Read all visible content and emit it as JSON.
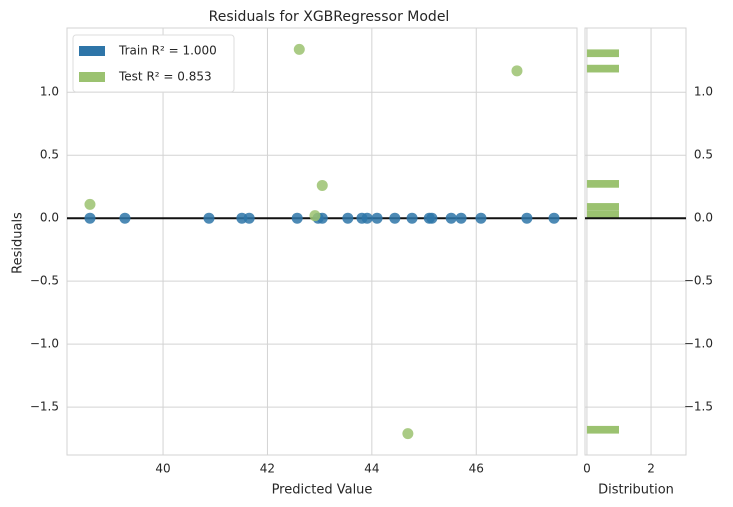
{
  "chart_data": [
    {
      "type": "scatter",
      "title": "Residuals for XGBRegressor Model",
      "x_label": "Predicted Value",
      "y_label": "Residuals",
      "xlim": [
        38.16,
        47.93
      ],
      "ylim": [
        -1.88,
        1.51
      ],
      "xticks": [
        40,
        42,
        44,
        46
      ],
      "yticks": [
        {
          "value": -1.5,
          "label": "−1.5"
        },
        {
          "value": -1.0,
          "label": "−1.0"
        },
        {
          "value": -0.5,
          "label": "−0.5"
        },
        {
          "value": 0,
          "label": "0.0"
        },
        {
          "value": 0.5,
          "label": "0.5"
        },
        {
          "value": 1.0,
          "label": "1.0"
        }
      ],
      "grid": true,
      "hline": 0,
      "legend": "upper left",
      "series": [
        {
          "name": "Train R² = 1.000",
          "color": "#2e75a8",
          "x": [
            38.6,
            39.27,
            40.88,
            41.51,
            41.65,
            42.57,
            42.97,
            43.05,
            43.54,
            43.81,
            43.91,
            44.1,
            44.44,
            44.77,
            45.1,
            45.15,
            45.52,
            45.71,
            46.09,
            46.97,
            47.49
          ],
          "values": [
            0,
            0,
            0,
            0,
            0,
            0,
            0,
            0,
            0,
            0,
            0,
            0,
            0,
            0,
            0,
            0,
            0,
            0,
            0,
            0,
            0
          ]
        },
        {
          "name": "Test R² = 0.853",
          "color": "#9bc270",
          "x": [
            38.6,
            42.61,
            46.78,
            43.05,
            42.91,
            44.69
          ],
          "values": [
            0.11,
            1.34,
            1.17,
            0.26,
            0.02,
            -1.71
          ]
        }
      ]
    },
    {
      "type": "histogram",
      "x_label": "Distribution",
      "orientation": "horizontal",
      "color": "#9bc270",
      "xlim": [
        -0.06,
        3.09
      ],
      "xticks": [
        0,
        2
      ],
      "ylim": [
        -1.88,
        1.51
      ],
      "yticks": [
        {
          "value": -1.5,
          "label": "−1.5"
        },
        {
          "value": -1.0,
          "label": "−1.0"
        },
        {
          "value": -0.5,
          "label": "−0.5"
        },
        {
          "value": 0,
          "label": "0.0"
        },
        {
          "value": 0.5,
          "label": "0.5"
        },
        {
          "value": 1.0,
          "label": "1.0"
        }
      ],
      "grid": true,
      "hline": 0,
      "bins": [
        -1.71,
        -1.649,
        -1.588,
        -1.527,
        -1.466,
        -1.405,
        -1.344,
        -1.283,
        -1.222,
        -1.161,
        -1.1,
        -1.039,
        -0.978,
        -0.917,
        -0.856,
        -0.795,
        -0.734,
        -0.673,
        -0.612,
        -0.551,
        -0.49,
        -0.429,
        -0.368,
        -0.307,
        -0.246,
        -0.185,
        -0.124,
        -0.063,
        -0.002,
        0.059,
        0.12,
        0.181,
        0.242,
        0.303,
        0.364,
        0.425,
        0.486,
        0.547,
        0.608,
        0.669,
        0.73,
        0.791,
        0.852,
        0.913,
        0.974,
        1.035,
        1.096,
        1.157,
        1.218,
        1.279,
        1.34
      ],
      "values": [
        1,
        0,
        0,
        0,
        0,
        0,
        0,
        0,
        0,
        0,
        0,
        0,
        0,
        0,
        0,
        0,
        0,
        0,
        0,
        0,
        0,
        0,
        0,
        0,
        0,
        0,
        0,
        0,
        1,
        1,
        0,
        0,
        1,
        0,
        0,
        0,
        0,
        0,
        0,
        0,
        0,
        0,
        0,
        0,
        0,
        0,
        0,
        1,
        0,
        1
      ]
    }
  ]
}
